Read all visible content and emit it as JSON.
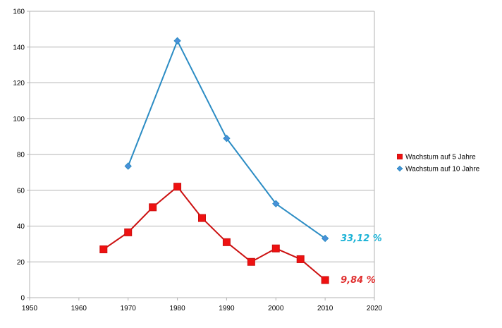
{
  "chart_data": {
    "type": "line",
    "title": "",
    "xlabel": "",
    "ylabel": "",
    "xlim": [
      1950,
      2020
    ],
    "ylim": [
      0,
      160
    ],
    "x_ticks": [
      1950,
      1960,
      1970,
      1980,
      1990,
      2000,
      2010,
      2020
    ],
    "y_ticks": [
      0,
      20,
      40,
      60,
      80,
      100,
      120,
      140,
      160
    ],
    "grid": "horizontal",
    "legend_position": "right",
    "series": [
      {
        "name": "Wachstum auf 5 Jahre",
        "color": "#cc1111",
        "fill": "#ee1111",
        "marker": "square",
        "x": [
          1965,
          1970,
          1975,
          1980,
          1985,
          1990,
          1995,
          2000,
          2005,
          2010
        ],
        "values": [
          27,
          36.5,
          50.5,
          62,
          44.5,
          31,
          20,
          27.5,
          21.5,
          9.84
        ]
      },
      {
        "name": "Wachstum auf 10 Jahre",
        "color": "#2b8cc4",
        "fill": "#4a90d9",
        "marker": "diamond",
        "x": [
          1970,
          1980,
          1990,
          2000,
          2010
        ],
        "values": [
          73.5,
          143.5,
          89,
          52.5,
          33.12
        ]
      }
    ],
    "annotations": [
      {
        "series": 1,
        "text": "33,12 %",
        "color": "#1ab2d6"
      },
      {
        "series": 0,
        "text": "9,84 %",
        "color": "#e03030"
      }
    ]
  }
}
